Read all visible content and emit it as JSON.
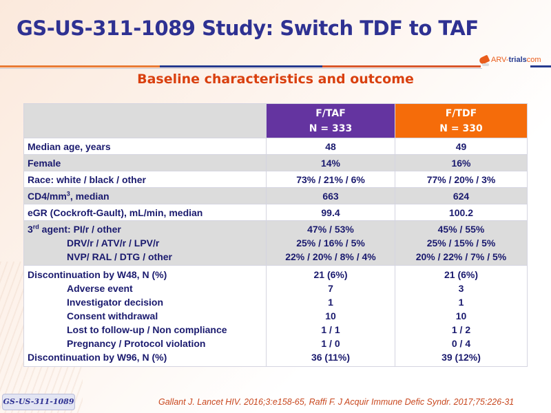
{
  "title": "GS-US-311-1089 Study: Switch TDF to TAF",
  "logo": {
    "part1": "ARV-",
    "part2": "trials",
    "part3": "com"
  },
  "subtitle": "Baseline characteristics and outcome",
  "colors": {
    "title": "#2e3192",
    "subtitle": "#d9400f",
    "taf_header": "#6434a0",
    "tdf_header": "#f56c0a",
    "row_alt": "#dcdcdc"
  },
  "table": {
    "headers": [
      {
        "name": "F/TAF",
        "n": "N = 333"
      },
      {
        "name": "F/TDF",
        "n": "N = 330"
      }
    ],
    "rows": [
      {
        "label": "Median age, years",
        "taf": "48",
        "tdf": "49"
      },
      {
        "label": "Female",
        "taf": "14%",
        "tdf": "16%"
      },
      {
        "label": "Race: white / black / other",
        "taf": "73% / 21% / 6%",
        "tdf": "77% / 20% / 3%"
      },
      {
        "label_pre": "CD4/mm",
        "label_sup": "3",
        "label_post": ", median",
        "taf": "663",
        "tdf": "624"
      },
      {
        "label": "eGR (Cockroft-Gault), mL/min, median",
        "taf": "99.4",
        "tdf": "100.2"
      }
    ],
    "third_agent": {
      "label_pre": "3",
      "label_sup": "rd",
      "label_post": " agent: PI/r / other",
      "taf": "47% / 53%",
      "tdf": "45% / 55%",
      "sub": [
        {
          "label": "DRV/r / ATV/r / LPV/r",
          "taf": "25% / 16% / 5%",
          "tdf": "25% / 15% / 5%"
        },
        {
          "label": "NVP/ RAL / DTG / other",
          "taf": "22% / 20% / 8% / 4%",
          "tdf": "20% / 22% / 7% / 5%"
        }
      ]
    },
    "discontinuation": {
      "label": "Discontinuation by W48, N (%)",
      "taf": "21 (6%)",
      "tdf": "21 (6%)",
      "sub": [
        {
          "label": "Adverse event",
          "taf": "7",
          "tdf": "3"
        },
        {
          "label": "Investigator decision",
          "taf": "1",
          "tdf": "1"
        },
        {
          "label": "Consent withdrawal",
          "taf": "10",
          "tdf": "10"
        },
        {
          "label": "Lost to follow-up / Non compliance",
          "taf": "1 / 1",
          "tdf": "1 / 2"
        },
        {
          "label": "Pregnancy / Protocol violation",
          "taf": "1 / 0",
          "tdf": "0 / 4"
        }
      ],
      "w96": {
        "label": "Discontinuation by W96, N (%)",
        "taf": "36 (11%)",
        "tdf": "39 (12%)"
      }
    }
  },
  "footer": {
    "badge": "GS-US-311-1089",
    "citation": "Gallant J. Lancet HIV. 2016;3:e158-65, Raffi F. J Acquir Immune Defic Syndr. 2017;75:226-31"
  }
}
